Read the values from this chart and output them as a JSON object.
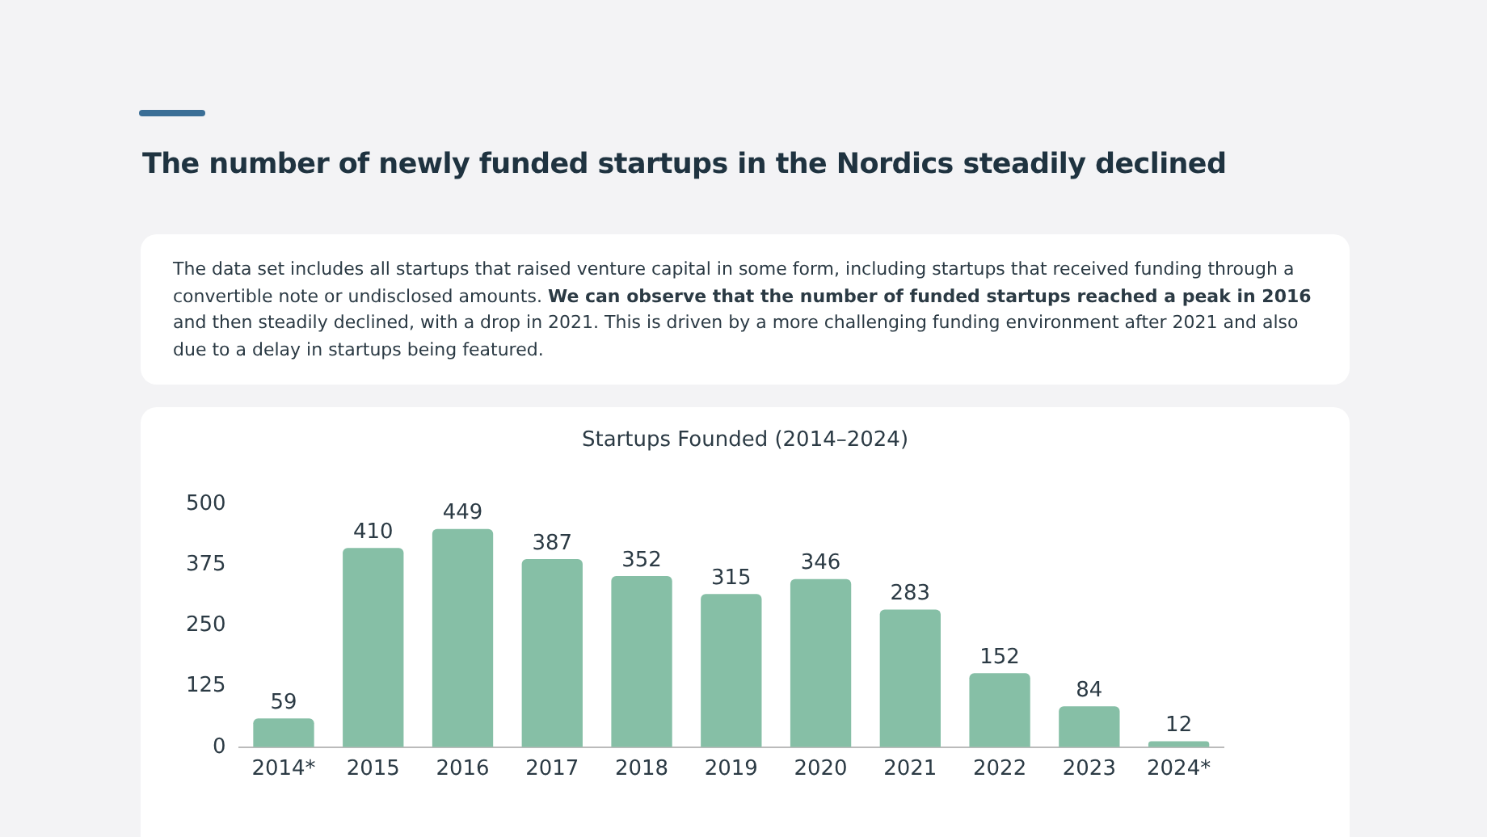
{
  "chart_data": {
    "type": "bar",
    "title": "The number of newly funded startups in the Nordics steadily declined",
    "subtitle": "Startups Founded (2014–2024)",
    "annotations": [
      "The data set includes all startups that raised venture capital in some form, including startups that received funding through a convertible note or undisclosed amounts.",
      "We can observe that the number of funded startups reached a peak in 2016",
      "and then steadily declined, with a drop in 2021. This is driven by a more challenging funding environment after 2021 and also due to a delay in startups being featured."
    ],
    "categories": [
      "2014*",
      "2015",
      "2016",
      "2017",
      "2018",
      "2019",
      "2020",
      "2021",
      "2022",
      "2023",
      "2024*"
    ],
    "values": [
      59,
      410,
      449,
      387,
      352,
      315,
      346,
      283,
      152,
      84,
      12
    ],
    "color": "#86bfa6",
    "ylim": [
      0,
      500
    ],
    "yticks": [
      0,
      125,
      250,
      375,
      500
    ],
    "grid": false,
    "legend": false,
    "data_labels": true
  }
}
